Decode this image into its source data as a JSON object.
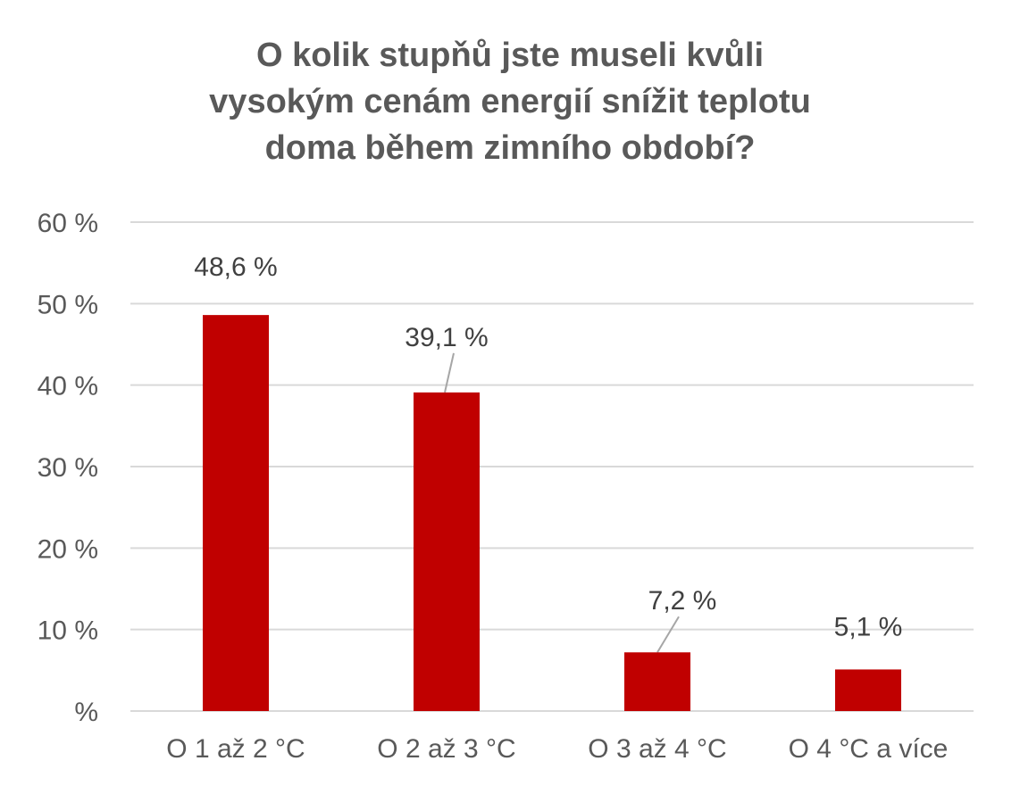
{
  "chart_data": {
    "type": "bar",
    "title_lines": [
      "O kolik stupňů jste museli kvůli",
      "vysokým cenám energií snížit teplotu",
      "doma během zimního období?"
    ],
    "categories": [
      "O 1 až 2 °C",
      "O 2 až 3 °C",
      "O 3 až 4 °C",
      "O 4 °C a více"
    ],
    "values": [
      48.6,
      39.1,
      7.2,
      5.1
    ],
    "data_labels": [
      "48,6 %",
      "39,1 %",
      "7,2 %",
      "5,1 %"
    ],
    "y_ticks": [
      0,
      10,
      20,
      30,
      40,
      50,
      60
    ],
    "y_tick_labels": [
      "%",
      "10 %",
      "20 %",
      "30 %",
      "40 %",
      "50 %",
      "60 %"
    ],
    "ylim": [
      0,
      60
    ],
    "grid": true,
    "legend": "none",
    "colors": {
      "bar": "#c00000",
      "grid": "#d9d9d9",
      "text": "#595959",
      "label": "#404040",
      "leader": "#a6a6a6"
    }
  }
}
